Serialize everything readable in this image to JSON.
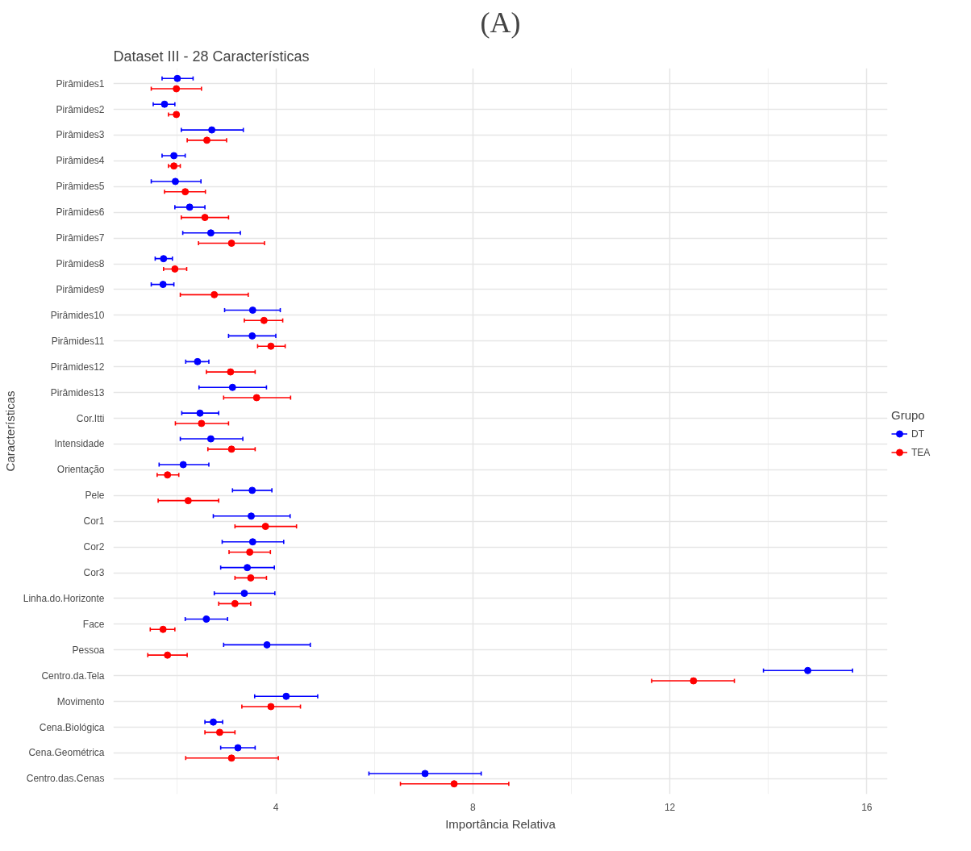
{
  "chart_data": {
    "type": "scatter",
    "orientation": "horizontal",
    "title": "(A)",
    "subtitle": "Dataset III - 28 Características",
    "xlabel": "Importância Relativa",
    "ylabel": "Características",
    "legend_title": "Grupo",
    "categories": [
      "Pirâmides1",
      "Pirâmides2",
      "Pirâmides3",
      "Pirâmides4",
      "Pirâmides5",
      "Pirâmides6",
      "Pirâmides7",
      "Pirâmides8",
      "Pirâmides9",
      "Pirâmides10",
      "Pirâmides11",
      "Pirâmides12",
      "Pirâmides13",
      "Cor.Itti",
      "Intensidade",
      "Orientação",
      "Pele",
      "Cor1",
      "Cor2",
      "Cor3",
      "Linha.do.Horizonte",
      "Face",
      "Pessoa",
      "Centro.da.Tela",
      "Movimento",
      "Cena.Biológica",
      "Cena.Geométrica",
      "Centro.das.Cenas"
    ],
    "series": [
      {
        "name": "DT",
        "color": "#0000ff",
        "values": [
          2.0,
          1.74,
          2.7,
          1.93,
          1.96,
          2.25,
          2.68,
          1.72,
          1.71,
          3.53,
          3.52,
          2.41,
          3.12,
          2.46,
          2.68,
          2.12,
          3.52,
          3.5,
          3.53,
          3.42,
          3.36,
          2.59,
          3.82,
          14.8,
          4.21,
          2.73,
          3.23,
          7.03
        ],
        "errors": [
          [
            1.69,
            2.32
          ],
          [
            1.51,
            1.95
          ],
          [
            2.08,
            3.34
          ],
          [
            1.69,
            2.16
          ],
          [
            1.47,
            2.48
          ],
          [
            1.95,
            2.56
          ],
          [
            2.11,
            3.28
          ],
          [
            1.55,
            1.9
          ],
          [
            1.47,
            1.93
          ],
          [
            2.96,
            4.09
          ],
          [
            3.04,
            4.0
          ],
          [
            2.17,
            2.64
          ],
          [
            2.44,
            3.81
          ],
          [
            2.09,
            2.84
          ],
          [
            2.06,
            3.33
          ],
          [
            1.63,
            2.64
          ],
          [
            3.12,
            3.92
          ],
          [
            2.73,
            4.29
          ],
          [
            2.91,
            4.16
          ],
          [
            2.88,
            3.97
          ],
          [
            2.75,
            3.98
          ],
          [
            2.16,
            3.02
          ],
          [
            2.94,
            4.7
          ],
          [
            13.9,
            15.71
          ],
          [
            3.57,
            4.85
          ],
          [
            2.56,
            2.92
          ],
          [
            2.88,
            3.58
          ],
          [
            5.89,
            8.17
          ]
        ]
      },
      {
        "name": "TEA",
        "color": "#ff0000",
        "values": [
          1.98,
          1.98,
          2.6,
          1.93,
          2.16,
          2.56,
          3.1,
          1.95,
          2.75,
          3.76,
          3.9,
          3.08,
          3.61,
          2.49,
          3.1,
          1.8,
          2.22,
          3.79,
          3.47,
          3.49,
          3.17,
          1.71,
          1.8,
          12.48,
          3.9,
          2.86,
          3.1,
          7.62
        ],
        "errors": [
          [
            1.47,
            2.49
          ],
          [
            1.82,
            1.96
          ],
          [
            2.2,
            3.0
          ],
          [
            1.82,
            2.06
          ],
          [
            1.74,
            2.57
          ],
          [
            2.08,
            3.04
          ],
          [
            2.43,
            3.77
          ],
          [
            1.72,
            2.19
          ],
          [
            2.06,
            3.44
          ],
          [
            3.36,
            4.14
          ],
          [
            3.63,
            4.19
          ],
          [
            2.59,
            3.58
          ],
          [
            2.94,
            4.3
          ],
          [
            1.96,
            3.04
          ],
          [
            2.62,
            3.58
          ],
          [
            1.59,
            2.03
          ],
          [
            1.61,
            2.84
          ],
          [
            3.17,
            4.42
          ],
          [
            3.05,
            3.89
          ],
          [
            3.17,
            3.81
          ],
          [
            2.84,
            3.49
          ],
          [
            1.45,
            1.95
          ],
          [
            1.4,
            2.2
          ],
          [
            11.63,
            13.31
          ],
          [
            3.31,
            4.5
          ],
          [
            2.56,
            3.17
          ],
          [
            2.17,
            4.05
          ],
          [
            6.53,
            8.73
          ]
        ]
      }
    ],
    "xlim": [
      0.7,
      16.42
    ],
    "xticks": [
      4,
      8,
      12,
      16
    ],
    "grid": true,
    "legend": "right",
    "marker": "circle"
  }
}
